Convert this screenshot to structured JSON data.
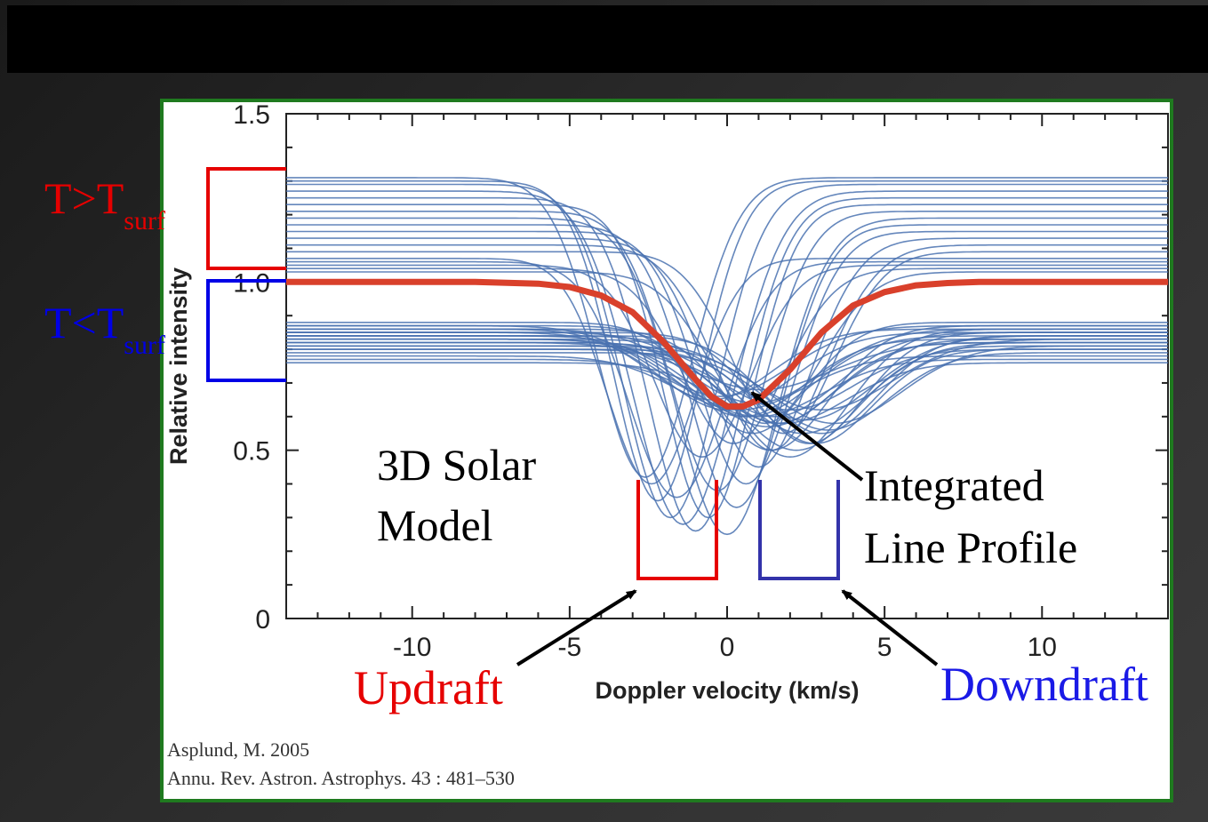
{
  "chart_data": {
    "type": "line",
    "title": "",
    "xlabel": "Doppler velocity (km/s)",
    "ylabel": "Relative intensity",
    "xlim": [
      -14,
      14
    ],
    "ylim": [
      0,
      1.5
    ],
    "xticks": [
      -10,
      -5,
      0,
      5,
      10
    ],
    "yticks": [
      0,
      0.5,
      1.0,
      1.5
    ],
    "xtick_labels": [
      "-10",
      "-5",
      "0",
      "5",
      "10"
    ],
    "ytick_labels": [
      "0",
      "0.5",
      "1.0",
      "1.5"
    ],
    "grid": false,
    "integrated_profile": {
      "color": "#d9402b",
      "x": [
        -14,
        -8,
        -6,
        -5,
        -4,
        -3,
        -2,
        -1,
        -0.5,
        0,
        0.5,
        1,
        2,
        3,
        4,
        5,
        6,
        7,
        8,
        14
      ],
      "y": [
        1.0,
        1.0,
        0.995,
        0.985,
        0.96,
        0.91,
        0.82,
        0.71,
        0.66,
        0.63,
        0.63,
        0.65,
        0.74,
        0.85,
        0.93,
        0.97,
        0.99,
        0.997,
        1.0,
        1.0
      ]
    },
    "local_profiles": {
      "color": "#4a72b0",
      "note_count_shown": 44,
      "continua": [
        1.31,
        1.3,
        1.29,
        1.27,
        1.25,
        1.23,
        1.21,
        1.19,
        1.17,
        1.15,
        1.13,
        1.11,
        1.09,
        1.07,
        1.06,
        1.05,
        1.04,
        1.03,
        0.88,
        0.87,
        0.86,
        0.85,
        0.84,
        0.83,
        0.82,
        0.81,
        0.8,
        0.79,
        0.78,
        0.77,
        0.76,
        0.86,
        0.85,
        0.84,
        0.83,
        0.82,
        0.81,
        0.8,
        0.87,
        0.86,
        0.85,
        0.84,
        0.83,
        0.82
      ],
      "centers": [
        -2.6,
        -2.2,
        -1.8,
        -1.4,
        -1.0,
        -0.6,
        -0.3,
        0.0,
        0.3,
        0.6,
        1.0,
        1.4,
        1.8,
        -2.4,
        -1.6,
        -0.8,
        0.2,
        1.2,
        0.8,
        1.4,
        2.0,
        2.6,
        3.0,
        0.5,
        1.6,
        2.2,
        2.8,
        3.2,
        0.4,
        1.0,
        1.8,
        -0.5,
        0.0,
        0.7,
        1.3,
        2.4,
        3.4,
        2.0,
        -0.2,
        0.9,
        1.5,
        2.5,
        3.0,
        1.1
      ],
      "minima": [
        0.42,
        0.35,
        0.3,
        0.28,
        0.26,
        0.3,
        0.38,
        0.25,
        0.33,
        0.4,
        0.45,
        0.5,
        0.55,
        0.4,
        0.36,
        0.48,
        0.52,
        0.58,
        0.55,
        0.5,
        0.48,
        0.52,
        0.55,
        0.6,
        0.58,
        0.5,
        0.52,
        0.56,
        0.62,
        0.6,
        0.58,
        0.65,
        0.62,
        0.6,
        0.57,
        0.55,
        0.58,
        0.62,
        0.66,
        0.64,
        0.6,
        0.59,
        0.62,
        0.68
      ],
      "widths": [
        1.5,
        1.4,
        1.5,
        1.6,
        1.5,
        1.4,
        1.5,
        1.6,
        1.5,
        1.5,
        1.6,
        1.7,
        1.6,
        1.4,
        1.5,
        1.5,
        1.6,
        1.7,
        1.7,
        1.8,
        1.8,
        1.7,
        1.8,
        1.9,
        1.8,
        1.9,
        1.8,
        1.9,
        2.0,
        2.0,
        2.0,
        1.9,
        2.0,
        2.0,
        2.1,
        2.0,
        2.1,
        2.0,
        2.1,
        2.1,
        2.0,
        2.1,
        2.2,
        2.2
      ]
    }
  },
  "annotations": {
    "hot": {
      "main": "T>T",
      "sub": "surf",
      "color": "#e60000"
    },
    "cold": {
      "main": "T<T",
      "sub": "surf",
      "color": "#0000e6"
    },
    "model_line1": "3D Solar",
    "model_line2": "Model",
    "integrated_line1": "Integrated",
    "integrated_line2": "Line Profile",
    "updraft": {
      "label": "Updraft",
      "color": "#e60000"
    },
    "downdraft": {
      "label": "Downdraft",
      "color": "#1a1ae6"
    },
    "bracket_hot_color": "#e60000",
    "bracket_cold_color": "#0000e6",
    "well_updraft_color": "#e60000",
    "well_downdraft_color": "#3333aa"
  },
  "citation": {
    "line1": "Asplund, M. 2005",
    "line2": "Annu. Rev. Astron. Astrophys. 43 : 481–530"
  },
  "colors": {
    "panel_border": "#1f7a1f",
    "title_bar": "#000000"
  }
}
